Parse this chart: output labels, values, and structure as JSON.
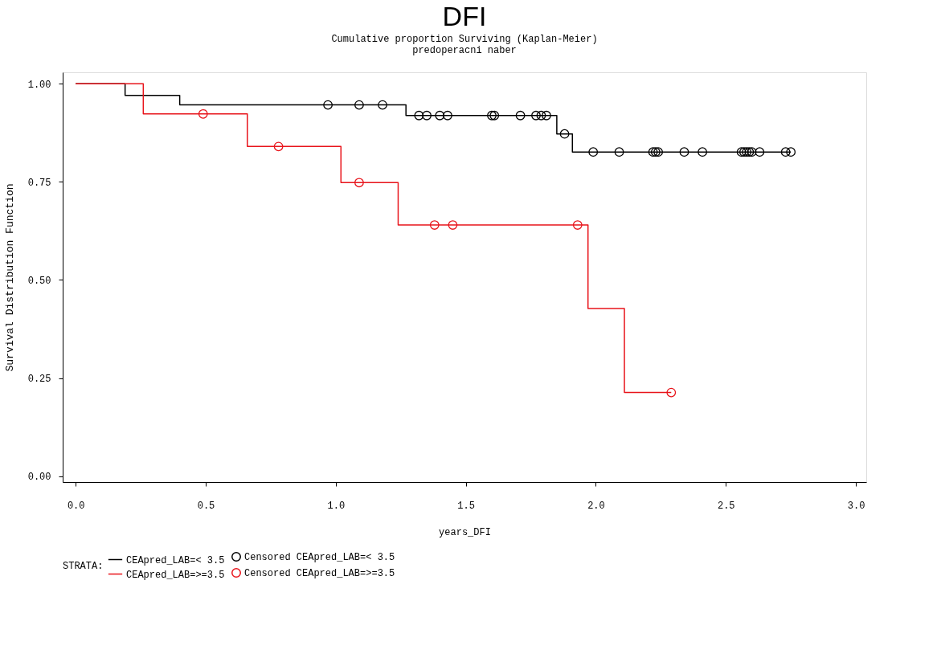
{
  "chart_data": {
    "type": "step",
    "title": "DFI",
    "subtitle": [
      "Cumulative proportion Surviving (Kaplan-Meier)",
      "predoperacni naber"
    ],
    "xlabel": "years_DFI",
    "ylabel": "Survival Distribution Function",
    "legend_title": "STRATA:",
    "xlim": [
      -0.05,
      3.04
    ],
    "ylim": [
      -0.015,
      1.029
    ],
    "xticks": [
      {
        "value": 0,
        "label": "0.0"
      },
      {
        "value": 0.5,
        "label": "0.5"
      },
      {
        "value": 1,
        "label": "1.0"
      },
      {
        "value": 1.5,
        "label": "1.5"
      },
      {
        "value": 2,
        "label": "2.0"
      },
      {
        "value": 2.5,
        "label": "2.5"
      },
      {
        "value": 3,
        "label": "3.0"
      }
    ],
    "yticks": [
      {
        "value": 0,
        "label": "0.00"
      },
      {
        "value": 0.25,
        "label": "0.25"
      },
      {
        "value": 0.5,
        "label": "0.50"
      },
      {
        "value": 0.75,
        "label": "0.75"
      },
      {
        "value": 1,
        "label": "1.00"
      }
    ],
    "grid": false,
    "legend": "bottom",
    "series": [
      {
        "name": "CEApred_LAB=< 3.5",
        "color": "#000000",
        "marker": "none",
        "x": [
          0,
          0.19,
          0.4,
          1.27,
          1.85,
          1.91,
          2.75
        ],
        "values": [
          1,
          0.97,
          0.946,
          0.919,
          0.872,
          0.826,
          0.826
        ]
      },
      {
        "name": "Censored CEApred_LAB=< 3.5",
        "type": "scatter",
        "color": "#000000",
        "marker": "circle",
        "x": [
          0.97,
          1.09,
          1.18,
          1.32,
          1.35,
          1.4,
          1.43,
          1.6,
          1.61,
          1.71,
          1.77,
          1.79,
          1.81,
          1.88,
          1.99,
          2.09,
          2.22,
          2.23,
          2.24,
          2.34,
          2.41,
          2.56,
          2.57,
          2.58,
          2.59,
          2.6,
          2.63,
          2.73,
          2.75
        ],
        "values": [
          0.946,
          0.946,
          0.946,
          0.919,
          0.919,
          0.919,
          0.919,
          0.919,
          0.919,
          0.919,
          0.919,
          0.919,
          0.919,
          0.872,
          0.826,
          0.826,
          0.826,
          0.826,
          0.826,
          0.826,
          0.826,
          0.826,
          0.826,
          0.826,
          0.826,
          0.826,
          0.826,
          0.826,
          0.826
        ]
      },
      {
        "name": "CEApred_LAB=>=3.5",
        "color": "#e8141b",
        "marker": "none",
        "x": [
          0,
          0.26,
          0.66,
          1.02,
          1.24,
          1.97,
          2.11,
          2.29
        ],
        "values": [
          1,
          0.923,
          0.84,
          0.748,
          0.64,
          0.427,
          0.213,
          0.213
        ]
      },
      {
        "name": "Censored CEApred_LAB=>=3.5",
        "type": "scatter",
        "color": "#e8141b",
        "marker": "circle",
        "x": [
          0.49,
          0.78,
          1.09,
          1.38,
          1.45,
          1.93,
          2.29
        ],
        "values": [
          0.923,
          0.84,
          0.748,
          0.64,
          0.64,
          0.64,
          0.213
        ]
      }
    ]
  }
}
